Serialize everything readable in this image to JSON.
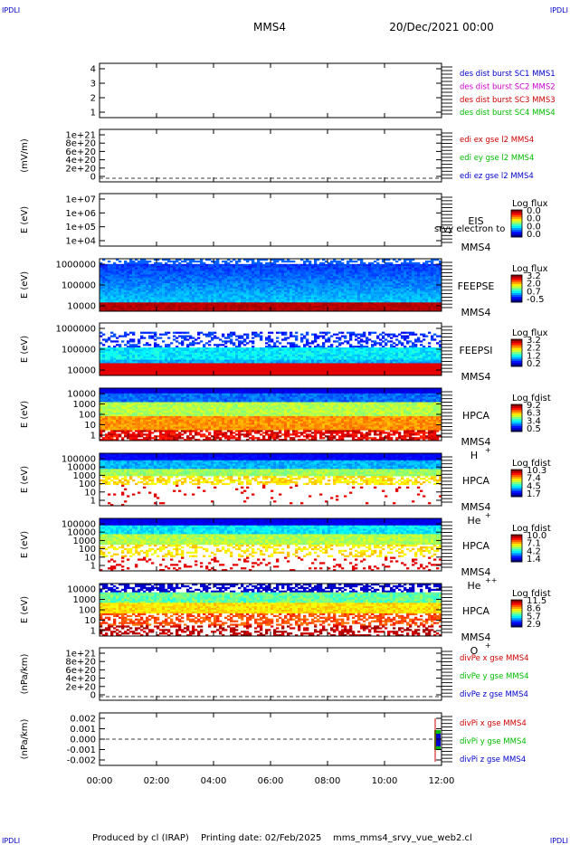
{
  "header": {
    "corner_left_top": "IPDLI",
    "corner_right_top": "IPDLI",
    "corner_left_bottom": "IPDLI",
    "corner_right_bottom": "IPDLI",
    "spacecraft": "MMS4",
    "date": "20/Dec/2021 00:00"
  },
  "footer": {
    "produced": "Produced by cl (IRAP)",
    "printing": "Printing date: 02/Feb/2025",
    "file": "mms_mms4_srvy_vue_web2.cl"
  },
  "colors": {
    "blue": "#0000cc",
    "magenta": "#cc00cc",
    "red": "#cc0000",
    "green": "#00bb00"
  },
  "chart_data": [
    {
      "type": "line",
      "panel": "des-dist-burst",
      "ylabel": "",
      "yticks": [
        "1",
        "2",
        "3",
        "4"
      ],
      "legend": [
        {
          "name": "des dist burst SC1 MMS1",
          "color": "#0000cc"
        },
        {
          "name": "des dist burst SC2 MMS2",
          "color": "#cc00cc"
        },
        {
          "name": "des dist burst SC3 MMS3",
          "color": "#cc0000"
        },
        {
          "name": "des dist burst SC4 MMS4",
          "color": "#00bb00"
        }
      ]
    },
    {
      "type": "line",
      "panel": "edi-e",
      "ylabel": "(mV/m)",
      "yticks": [
        "0",
        "2e+20",
        "4e+20",
        "6e+20",
        "8e+20",
        "1e+21"
      ],
      "zero_line": true,
      "legend": [
        {
          "name": "edi ex gse l2 MMS4",
          "color": "#cc0000"
        },
        {
          "name": "edi ey gse l2 MMS4",
          "color": "#00bb00"
        },
        {
          "name": "edi ez gse l2 MMS4",
          "color": "#0000cc"
        }
      ]
    },
    {
      "type": "heatmap",
      "panel": "eis",
      "ylabel": "E (eV)",
      "yticks": [
        "1e+04",
        "1e+05",
        "1e+06",
        "1e+07"
      ],
      "instrument": "EIS",
      "overlay": "srvy electron to",
      "sc": "MMS4",
      "cbar_title": "Log flux",
      "cbar_ticks": [
        "0.0",
        "0.0",
        "0.0",
        "0.0"
      ],
      "empty": true
    },
    {
      "type": "heatmap",
      "panel": "feeps-e",
      "ylabel": "E (eV)",
      "yticks": [
        "10000",
        "100000",
        "1000000"
      ],
      "instrument": "FEEPSE",
      "sc": "MMS4",
      "cbar_title": "Log flux",
      "cbar_ticks": [
        "3.2",
        "2.0",
        "0.7",
        "-0.5"
      ]
    },
    {
      "type": "heatmap",
      "panel": "feeps-i",
      "ylabel": "E (eV)",
      "yticks": [
        "10000",
        "100000",
        "1000000"
      ],
      "instrument": "FEEPSI",
      "sc": "MMS4",
      "cbar_title": "Log flux",
      "cbar_ticks": [
        "3.2",
        "2.2",
        "1.2",
        "0.2"
      ]
    },
    {
      "type": "heatmap",
      "panel": "hpca-h",
      "ylabel": "E (eV)",
      "yticks": [
        "1",
        "10",
        "100",
        "1000",
        "10000"
      ],
      "instrument": "HPCA",
      "sc": "MMS4",
      "species": "H",
      "charge": "+",
      "cbar_title": "Log fdist",
      "cbar_ticks": [
        "9.2",
        "6.3",
        "3.4",
        "0.5"
      ]
    },
    {
      "type": "heatmap",
      "panel": "hpca-he",
      "ylabel": "E (eV)",
      "yticks": [
        "1",
        "10",
        "100",
        "1000",
        "10000",
        "100000"
      ],
      "instrument": "HPCA",
      "sc": "MMS4",
      "species": "He",
      "charge": "+",
      "cbar_title": "Log fdist",
      "cbar_ticks": [
        "10.3",
        "7.4",
        "4.5",
        "1.7"
      ]
    },
    {
      "type": "heatmap",
      "panel": "hpca-he2",
      "ylabel": "E (eV)",
      "yticks": [
        "1",
        "10",
        "100",
        "1000",
        "10000",
        "100000"
      ],
      "instrument": "HPCA",
      "sc": "MMS4",
      "species": "He",
      "charge": "++",
      "cbar_title": "Log fdist",
      "cbar_ticks": [
        "10.0",
        "7.1",
        "4.2",
        "1.4"
      ]
    },
    {
      "type": "heatmap",
      "panel": "hpca-o",
      "ylabel": "E (eV)",
      "yticks": [
        "1",
        "10",
        "100",
        "1000",
        "10000"
      ],
      "instrument": "HPCA",
      "sc": "MMS4",
      "species": "O",
      "charge": "+",
      "cbar_title": "Log fdist",
      "cbar_ticks": [
        "11.5",
        "8.6",
        "5.7",
        "2.9"
      ]
    },
    {
      "type": "line",
      "panel": "divpe",
      "ylabel": "(nPa/km)",
      "yticks": [
        "0",
        "2e+20",
        "4e+20",
        "6e+20",
        "8e+20",
        "1e+21"
      ],
      "zero_line": true,
      "legend": [
        {
          "name": "divPe x gse MMS4",
          "color": "#cc0000"
        },
        {
          "name": "divPe y gse MMS4",
          "color": "#00bb00"
        },
        {
          "name": "divPe z gse MMS4",
          "color": "#0000cc"
        }
      ]
    },
    {
      "type": "line",
      "panel": "divpi",
      "ylabel": "(nPa/km)",
      "yticks": [
        "-0.002",
        "-0.001",
        "0.000",
        "0.001",
        "0.002"
      ],
      "zero_line": true,
      "legend": [
        {
          "name": "divPi x gse MMS4",
          "color": "#cc0000"
        },
        {
          "name": "divPi y gse MMS4",
          "color": "#00bb00"
        },
        {
          "name": "divPi z gse MMS4",
          "color": "#0000cc"
        }
      ]
    }
  ],
  "xaxis": {
    "ticks": [
      "00:00",
      "02:00",
      "04:00",
      "06:00",
      "08:00",
      "10:00",
      "12:00"
    ]
  }
}
